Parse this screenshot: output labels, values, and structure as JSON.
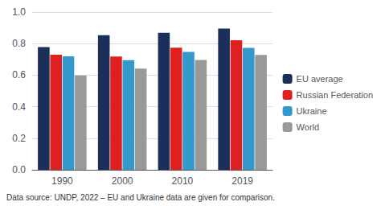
{
  "chart_data": {
    "type": "bar",
    "categories": [
      "1990",
      "2000",
      "2010",
      "2019"
    ],
    "series": [
      {
        "name": "EU average",
        "color": "#1a2f5a",
        "values": [
          0.778,
          0.853,
          0.868,
          0.896
        ]
      },
      {
        "name": "Russian Federation",
        "color": "#e02020",
        "values": [
          0.729,
          0.718,
          0.774,
          0.822
        ]
      },
      {
        "name": "Ukraine",
        "color": "#3399cc",
        "values": [
          0.72,
          0.695,
          0.748,
          0.773
        ]
      },
      {
        "name": "World",
        "color": "#999999",
        "values": [
          0.598,
          0.642,
          0.697,
          0.728
        ]
      }
    ],
    "ylim": [
      0,
      1.0
    ],
    "yticks": [
      {
        "value": 0,
        "label": "0.0"
      },
      0.2,
      0.4,
      0.6,
      0.8,
      {
        "value": 1.0,
        "label": "1.0"
      }
    ],
    "grid": true,
    "legend": "right",
    "annotation": "Data source: UNDP, 2022 – EU and Ukraine data are given for comparison."
  }
}
